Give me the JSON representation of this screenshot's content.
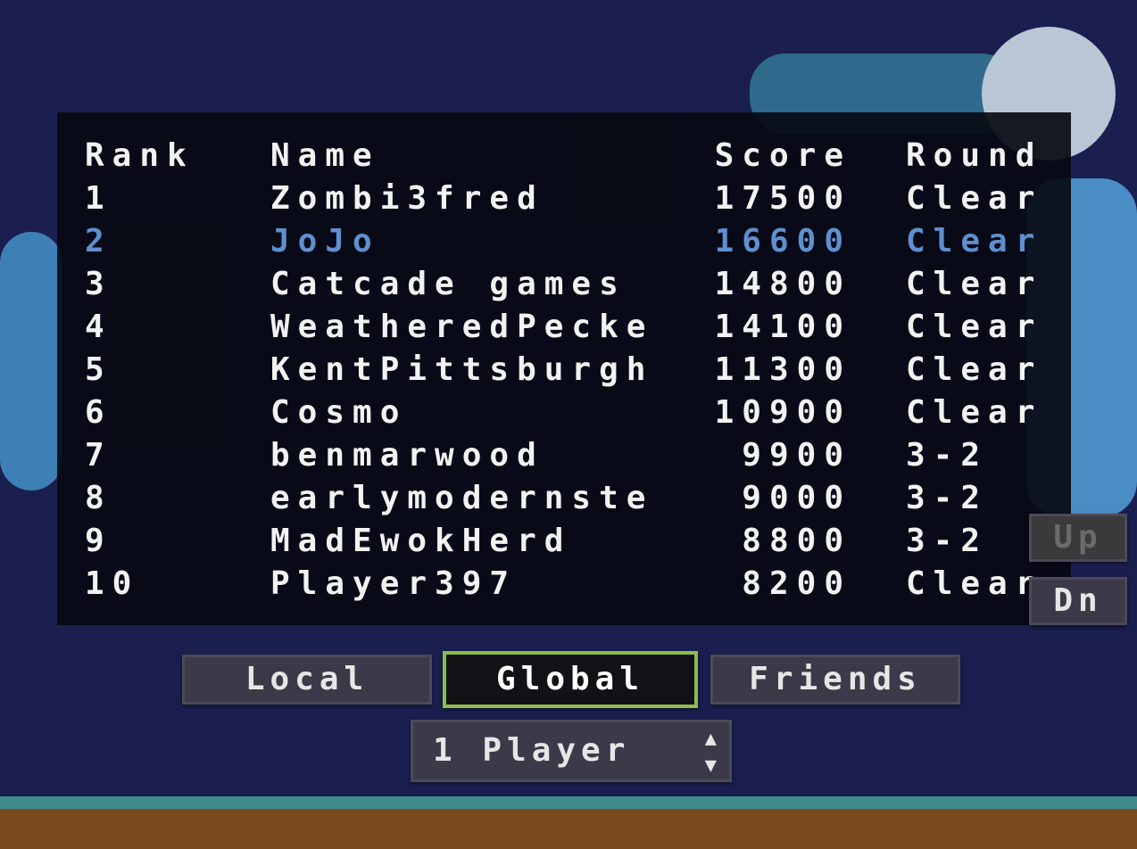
{
  "leaderboard": {
    "headers": {
      "rank": "Rank",
      "name": "Name",
      "score": "Score",
      "round": "Round"
    },
    "rows": [
      {
        "rank": "1",
        "name": "Zombi3fred",
        "score": "17500",
        "round": "Clear"
      },
      {
        "rank": "2",
        "name": "JoJo",
        "score": "16600",
        "round": "Clear",
        "highlighted": true
      },
      {
        "rank": "3",
        "name": "Catcade games",
        "score": "14800",
        "round": "Clear"
      },
      {
        "rank": "4",
        "name": "WeatheredPecke",
        "score": "14100",
        "round": "Clear"
      },
      {
        "rank": "5",
        "name": "KentPittsburgh",
        "score": "11300",
        "round": "Clear"
      },
      {
        "rank": "6",
        "name": "Cosmo",
        "score": "10900",
        "round": "Clear"
      },
      {
        "rank": "7",
        "name": "benmarwood",
        "score": "9900",
        "round": "3-2"
      },
      {
        "rank": "8",
        "name": "earlymodernste",
        "score": "9000",
        "round": "3-2"
      },
      {
        "rank": "9",
        "name": "MadEwokHerd",
        "score": "8800",
        "round": "3-2"
      },
      {
        "rank": "10",
        "name": "Player397",
        "score": "8200",
        "round": "Clear"
      }
    ],
    "highlight_color": "#5f8fcf"
  },
  "scroll": {
    "up_label": "Up",
    "down_label": "Dn",
    "up_disabled": true
  },
  "tabs": [
    {
      "label": "Local"
    },
    {
      "label": "Global",
      "selected": true
    },
    {
      "label": "Friends"
    }
  ],
  "player_select": {
    "value": "1 Player",
    "icon": "up-down-arrows-icon"
  },
  "colors": {
    "background": "#1b1f4f",
    "selected_border": "#8cbd4c"
  }
}
